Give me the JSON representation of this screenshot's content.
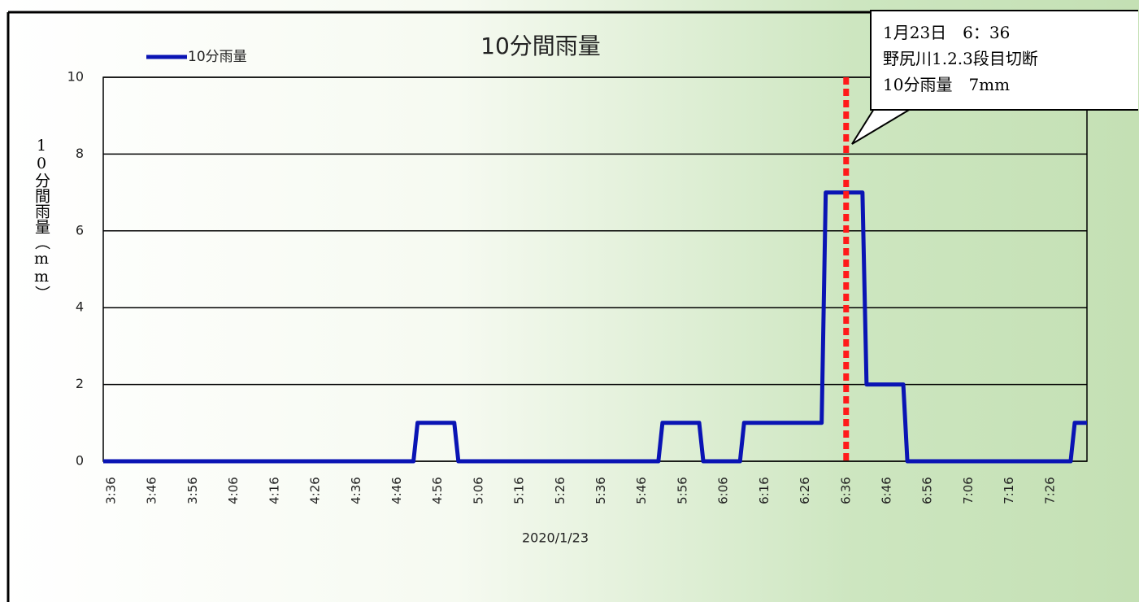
{
  "chart_data": {
    "type": "line",
    "title": "10分間雨量",
    "x_label": "2020/1/23",
    "y_label": "10分間雨量（mm）",
    "series": [
      {
        "name": "10分雨量",
        "color": "#0a14b4",
        "x": [
          214,
          290,
          291,
          300,
          301,
          350,
          351,
          360,
          361,
          370,
          371,
          390,
          391,
          400,
          401,
          410,
          411,
          451,
          452,
          455
        ],
        "values": [
          0,
          0,
          1,
          1,
          0,
          0,
          1,
          1,
          0,
          0,
          1,
          1,
          7,
          7,
          2,
          2,
          0,
          0,
          1,
          1
        ]
      }
    ],
    "xlim": [
      214,
      455
    ],
    "ylim": [
      0,
      10
    ],
    "yticks": [
      0,
      2,
      4,
      6,
      8,
      10
    ],
    "grid": true,
    "xticks": [
      {
        "value": 216,
        "label": "3:36"
      },
      {
        "value": 226,
        "label": "3:46"
      },
      {
        "value": 236,
        "label": "3:56"
      },
      {
        "value": 246,
        "label": "4:06"
      },
      {
        "value": 256,
        "label": "4:16"
      },
      {
        "value": 266,
        "label": "4:26"
      },
      {
        "value": 276,
        "label": "4:36"
      },
      {
        "value": 286,
        "label": "4:46"
      },
      {
        "value": 296,
        "label": "4:56"
      },
      {
        "value": 306,
        "label": "5:06"
      },
      {
        "value": 316,
        "label": "5:16"
      },
      {
        "value": 326,
        "label": "5:26"
      },
      {
        "value": 336,
        "label": "5:36"
      },
      {
        "value": 346,
        "label": "5:46"
      },
      {
        "value": 356,
        "label": "5:56"
      },
      {
        "value": 366,
        "label": "6:06"
      },
      {
        "value": 376,
        "label": "6:16"
      },
      {
        "value": 386,
        "label": "6:26"
      },
      {
        "value": 396,
        "label": "6:36"
      },
      {
        "value": 406,
        "label": "6:46"
      },
      {
        "value": 416,
        "label": "6:56"
      },
      {
        "value": 426,
        "label": "7:06"
      },
      {
        "value": 436,
        "label": "7:16"
      },
      {
        "value": 446,
        "label": "7:26"
      }
    ],
    "annotation": {
      "x": 396,
      "color": "#ff1a1a",
      "lines": [
        "1月23日　6：36",
        "野尻川1.2.3段目切断",
        "10分雨量　7mm"
      ]
    }
  }
}
